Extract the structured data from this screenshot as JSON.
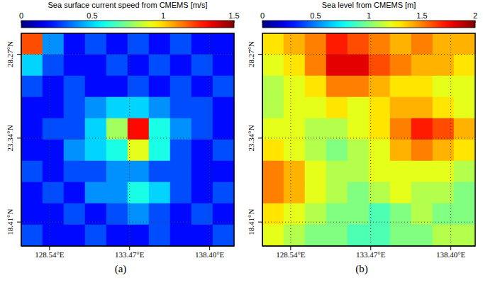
{
  "chart_data": [
    {
      "type": "heatmap",
      "panel_label": "(a)",
      "title": "Sea surface current speed from CMEMS [m/s]",
      "xlim": [
        126.8,
        139.9
      ],
      "ylim": [
        17.0,
        29.5
      ],
      "xticks": [
        {
          "value": 128.54,
          "label": "128.54°E"
        },
        {
          "value": 133.47,
          "label": "133.47°E"
        },
        {
          "value": 138.4,
          "label": "138.40°E"
        }
      ],
      "yticks": [
        {
          "value": 18.41,
          "label": "18.41°N"
        },
        {
          "value": 23.34,
          "label": "23.34°N"
        },
        {
          "value": 28.27,
          "label": "28.27°N"
        }
      ],
      "grid": true,
      "x_edges": [
        126.8,
        128.11,
        129.42,
        130.73,
        132.04,
        133.35,
        134.66,
        135.97,
        137.28,
        138.59,
        139.9
      ],
      "y_edges": [
        29.5,
        28.25,
        27.0,
        25.75,
        24.5,
        23.25,
        22.0,
        20.75,
        19.5,
        18.25,
        17.0
      ],
      "cells": [
        [
          1.2,
          0.4,
          0.2,
          0.3,
          0.2,
          0.3,
          0.2,
          0.3,
          0.2,
          0.2
        ],
        [
          0.5,
          0.3,
          0.2,
          0.2,
          0.3,
          0.2,
          0.3,
          0.2,
          0.3,
          0.2
        ],
        [
          0.3,
          0.2,
          0.3,
          0.2,
          0.2,
          0.3,
          0.2,
          0.3,
          0.2,
          0.3
        ],
        [
          0.2,
          0.2,
          0.3,
          0.4,
          0.5,
          0.5,
          0.4,
          0.3,
          0.3,
          0.2
        ],
        [
          0.2,
          0.3,
          0.3,
          0.5,
          0.8,
          1.3,
          0.6,
          0.4,
          0.3,
          0.2
        ],
        [
          0.2,
          0.2,
          0.4,
          0.5,
          0.6,
          0.9,
          0.6,
          0.3,
          0.2,
          0.3
        ],
        [
          0.3,
          0.2,
          0.3,
          0.3,
          0.4,
          0.4,
          0.3,
          0.3,
          0.2,
          0.2
        ],
        [
          0.2,
          0.3,
          0.2,
          0.4,
          0.4,
          0.6,
          0.5,
          0.3,
          0.2,
          0.3
        ],
        [
          0.2,
          0.2,
          0.3,
          0.2,
          0.3,
          0.4,
          0.3,
          0.2,
          0.3,
          0.2
        ],
        [
          0.3,
          0.2,
          0.2,
          0.3,
          0.2,
          0.2,
          0.3,
          0.2,
          0.2,
          0.3
        ]
      ],
      "colorbar": {
        "range": [
          0,
          1.5
        ],
        "ticks": [
          0,
          0.5,
          1,
          1.5
        ]
      }
    },
    {
      "type": "heatmap",
      "panel_label": "(b)",
      "title": "Sea level from CMEMS [m]",
      "xlim": [
        126.8,
        139.9
      ],
      "ylim": [
        17.0,
        29.5
      ],
      "xticks": [
        {
          "value": 128.54,
          "label": "128.54°E"
        },
        {
          "value": 133.47,
          "label": "133.47°E"
        },
        {
          "value": 138.4,
          "label": "138.40°E"
        }
      ],
      "yticks": [
        {
          "value": 18.41,
          "label": "18.41°N"
        },
        {
          "value": 23.34,
          "label": "23.34°N"
        },
        {
          "value": 28.27,
          "label": "28.27°N"
        }
      ],
      "grid": true,
      "x_edges": [
        126.8,
        128.11,
        129.42,
        130.73,
        132.04,
        133.35,
        134.66,
        135.97,
        137.28,
        138.59,
        139.9
      ],
      "y_edges": [
        29.5,
        28.25,
        27.0,
        25.75,
        24.5,
        23.25,
        22.0,
        20.75,
        19.5,
        18.25,
        17.0
      ],
      "cells": [
        [
          1.3,
          1.4,
          1.5,
          1.7,
          1.6,
          1.5,
          1.4,
          1.5,
          1.4,
          1.4
        ],
        [
          1.2,
          1.3,
          1.5,
          1.8,
          1.8,
          1.6,
          1.5,
          1.4,
          1.4,
          1.3
        ],
        [
          1.1,
          1.2,
          1.3,
          1.5,
          1.5,
          1.4,
          1.3,
          1.3,
          1.2,
          1.2
        ],
        [
          1.1,
          1.2,
          1.2,
          1.3,
          1.2,
          1.3,
          1.4,
          1.4,
          1.3,
          1.2
        ],
        [
          1.2,
          1.2,
          1.1,
          1.1,
          1.2,
          1.3,
          1.5,
          1.7,
          1.6,
          1.4
        ],
        [
          1.3,
          1.2,
          1.1,
          1.0,
          1.1,
          1.2,
          1.4,
          1.5,
          1.4,
          1.3
        ],
        [
          1.5,
          1.4,
          1.2,
          1.1,
          1.1,
          1.2,
          1.2,
          1.2,
          1.2,
          1.1
        ],
        [
          1.5,
          1.4,
          1.2,
          1.1,
          1.0,
          1.1,
          1.2,
          1.1,
          1.1,
          1.0
        ],
        [
          1.3,
          1.2,
          1.1,
          1.0,
          1.0,
          0.9,
          1.0,
          1.1,
          1.0,
          1.0
        ],
        [
          1.2,
          1.1,
          1.0,
          1.0,
          0.9,
          0.9,
          1.0,
          1.0,
          1.1,
          1.1
        ]
      ],
      "colorbar": {
        "range": [
          0,
          2
        ],
        "ticks": [
          0,
          0.5,
          1,
          1.5,
          2
        ]
      }
    }
  ]
}
